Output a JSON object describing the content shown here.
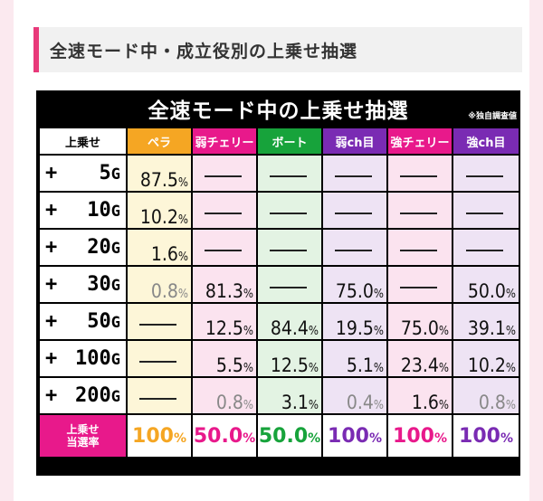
{
  "section_header": "全速モード中・成立役別の上乗せ抽選",
  "table_title": "全速モード中の上乗せ抽選",
  "table_note": "※独自調査値",
  "columns": [
    {
      "label": "上乗せ",
      "bg": "#ffffff",
      "color": "#000000"
    },
    {
      "label": "ペラ",
      "bg": "#f5a623",
      "color": "#ffffff"
    },
    {
      "label": "弱チェリー",
      "bg": "#e8198b",
      "color": "#ffffff"
    },
    {
      "label": "ボート",
      "bg": "#17a33b",
      "color": "#ffffff"
    },
    {
      "label": "弱ch目",
      "bg": "#7a2bb3",
      "color": "#ffffff"
    },
    {
      "label": "強チェリー",
      "bg": "#e8198b",
      "color": "#ffffff"
    },
    {
      "label": "強ch目",
      "bg": "#7a2bb3",
      "color": "#ffffff"
    }
  ],
  "rows": [
    {
      "plus": "+",
      "num": "5",
      "unit": "G",
      "cells": [
        {
          "v": "87.5",
          "u": "%"
        },
        {
          "dash": true
        },
        {
          "dash": true
        },
        {
          "dash": true
        },
        {
          "dash": true
        },
        {
          "dash": true
        }
      ]
    },
    {
      "plus": "+",
      "num": "10",
      "unit": "G",
      "cells": [
        {
          "v": "10.2",
          "u": "%"
        },
        {
          "dash": true
        },
        {
          "dash": true
        },
        {
          "dash": true
        },
        {
          "dash": true
        },
        {
          "dash": true
        }
      ]
    },
    {
      "plus": "+",
      "num": "20",
      "unit": "G",
      "cells": [
        {
          "v": "1.6",
          "u": "%"
        },
        {
          "dash": true
        },
        {
          "dash": true
        },
        {
          "dash": true
        },
        {
          "dash": true
        },
        {
          "dash": true
        }
      ]
    },
    {
      "plus": "+",
      "num": "30",
      "unit": "G",
      "cells": [
        {
          "v": "0.8",
          "u": "%",
          "dim": true
        },
        {
          "v": "81.3",
          "u": "%"
        },
        {
          "dash": true
        },
        {
          "v": "75.0",
          "u": "%"
        },
        {
          "dash": true
        },
        {
          "v": "50.0",
          "u": "%"
        }
      ]
    },
    {
      "plus": "+",
      "num": "50",
      "unit": "G",
      "cells": [
        {
          "dash": true
        },
        {
          "v": "12.5",
          "u": "%"
        },
        {
          "v": "84.4",
          "u": "%"
        },
        {
          "v": "19.5",
          "u": "%"
        },
        {
          "v": "75.0",
          "u": "%"
        },
        {
          "v": "39.1",
          "u": "%"
        }
      ]
    },
    {
      "plus": "+",
      "num": "100",
      "unit": "G",
      "cells": [
        {
          "dash": true
        },
        {
          "v": "5.5",
          "u": "%"
        },
        {
          "v": "12.5",
          "u": "%"
        },
        {
          "v": "5.1",
          "u": "%"
        },
        {
          "v": "23.4",
          "u": "%"
        },
        {
          "v": "10.2",
          "u": "%"
        }
      ]
    },
    {
      "plus": "+",
      "num": "200",
      "unit": "G",
      "cells": [
        {
          "dash": true
        },
        {
          "v": "0.8",
          "u": "%",
          "dim": true
        },
        {
          "v": "3.1",
          "u": "%"
        },
        {
          "v": "0.4",
          "u": "%",
          "dim": true
        },
        {
          "v": "1.6",
          "u": "%"
        },
        {
          "v": "0.8",
          "u": "%",
          "dim": true
        }
      ]
    }
  ],
  "total_row": {
    "label_line1": "上乗せ",
    "label_line2": "当選率",
    "cells": [
      {
        "v": "100",
        "u": "%",
        "color": "#f5a623"
      },
      {
        "v": "50.0",
        "u": "%",
        "color": "#e8198b"
      },
      {
        "v": "50.0",
        "u": "%",
        "color": "#17a33b"
      },
      {
        "v": "100",
        "u": "%",
        "color": "#7a2bb3"
      },
      {
        "v": "100",
        "u": "%",
        "color": "#e8198b"
      },
      {
        "v": "100",
        "u": "%",
        "color": "#7a2bb3"
      }
    ]
  }
}
